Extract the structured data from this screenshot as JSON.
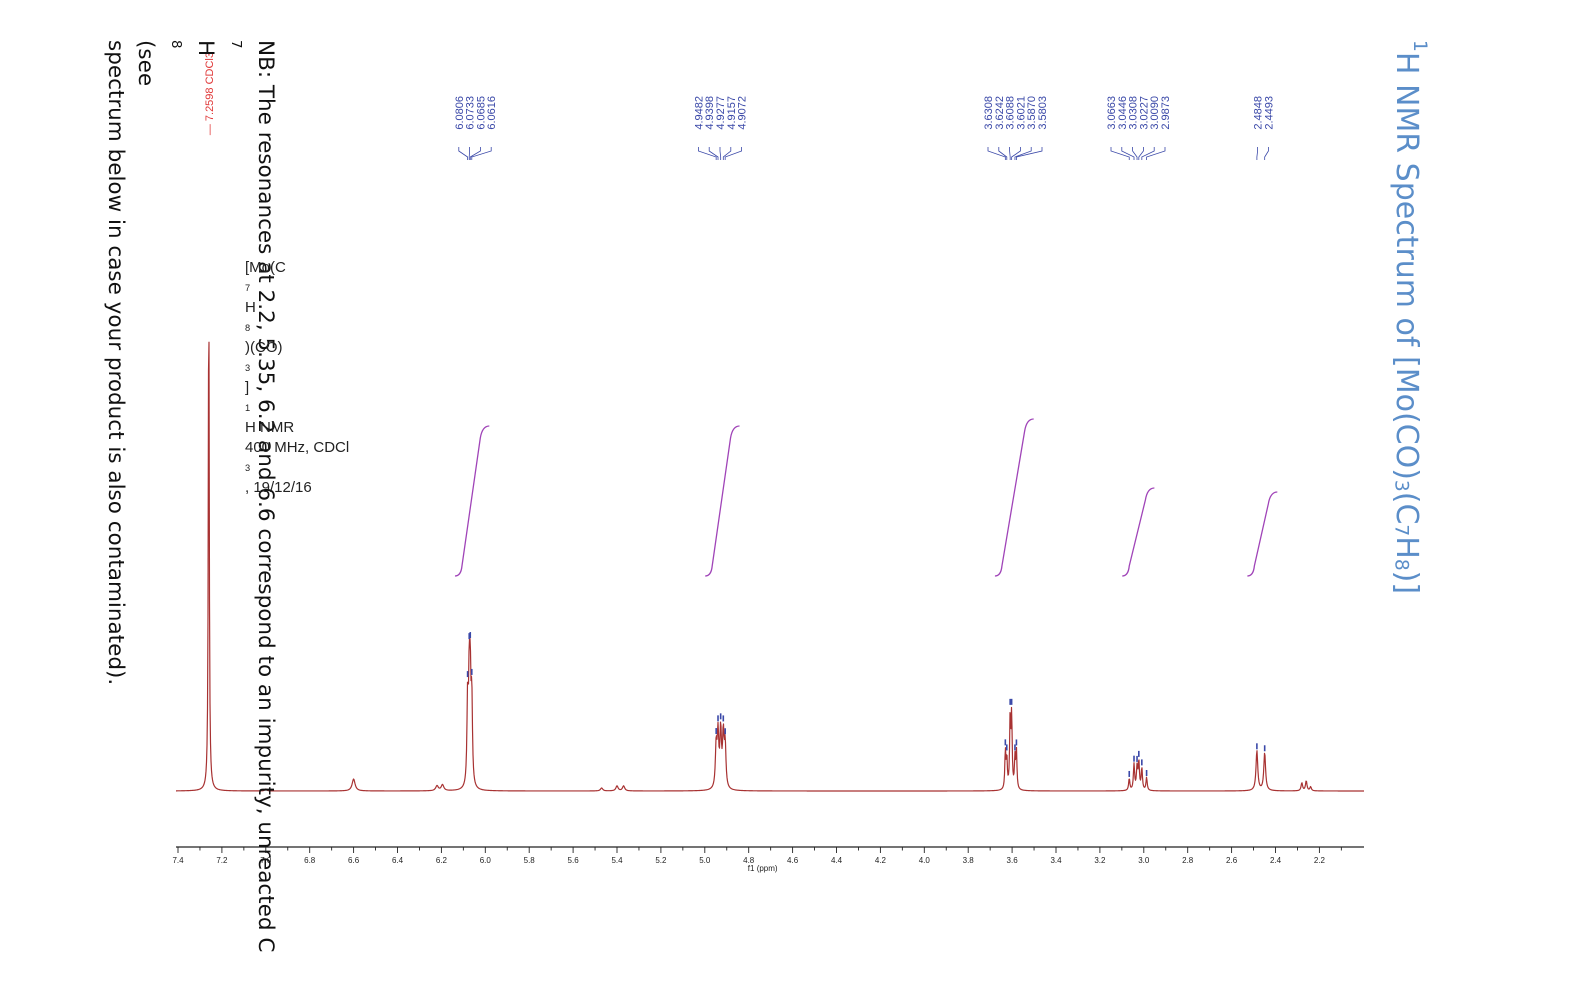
{
  "title": {
    "pre": "1",
    "main": "H NMR Spectrum of [Mo(CO)",
    "s1": "3",
    "mid": "(C",
    "s2": "7",
    "mid2": "H",
    "s3": "8",
    "end": ")]"
  },
  "note": {
    "line1": "NB: The resonances at 2.2, 5.35, 6.2 and 6.6 correspond to an impurity, unreacted C",
    "s1": "7",
    "mid": "H",
    "s2": "8",
    "line1_end": " (see",
    "line2": "spectrum below in case your product is also contaminated)."
  },
  "sample": {
    "l1a": "[Mo(C",
    "l1s1": "7",
    "l1b": "H",
    "l1s2": "8",
    "l1c": ")(CO)",
    "l1s3": "3",
    "l1d": "]",
    "l1sup": "1",
    "l1e": "H NMR",
    "line2": "400 MHz, CDCl",
    "l2s": "3",
    "l2end": ", 19/12/16"
  },
  "colors": {
    "spectrum": "#a83232",
    "peak_marker": "#3a48a8",
    "integral": "#a044b8",
    "solvent_label": "#e03a3a",
    "title": "#5b8ec9",
    "axis": "#222222"
  },
  "chart_data": {
    "type": "line",
    "title": "",
    "xlabel": "f1 (ppm)",
    "ylabel": "",
    "xlim": [
      7.4,
      2.05
    ],
    "x_reversed": true,
    "xticks": [
      "7.4",
      "7.2",
      "7.0",
      "6.8",
      "6.6",
      "6.4",
      "6.2",
      "6.0",
      "5.8",
      "5.6",
      "5.4",
      "5.2",
      "5.0",
      "4.8",
      "4.6",
      "4.4",
      "4.2",
      "4.0",
      "3.8",
      "3.6",
      "3.4",
      "3.2",
      "3.0",
      "2.8",
      "2.6",
      "2.4",
      "2.2"
    ],
    "solvent_peak": {
      "label": "7.2598 CDCl3",
      "ppm": 7.2598
    },
    "peak_groups": [
      {
        "labels": [
          "6.0806",
          "6.0733",
          "6.0685",
          "6.0616"
        ]
      },
      {
        "labels": [
          "4.9482",
          "4.9398",
          "4.9277",
          "4.9157",
          "4.9072"
        ]
      },
      {
        "labels": [
          "3.6308",
          "3.6242",
          "3.6088",
          "3.6021",
          "3.5870",
          "3.5803"
        ]
      },
      {
        "labels": [
          "3.0663",
          "3.0446",
          "3.0308",
          "3.0227",
          "3.0090",
          "2.9873"
        ]
      },
      {
        "labels": [
          "2.4848",
          "2.4493"
        ]
      }
    ],
    "integrals": [
      {
        "from": 6.12,
        "to": 6.0
      },
      {
        "from": 4.98,
        "to": 4.86
      },
      {
        "from": 3.66,
        "to": 3.52
      },
      {
        "from": 3.08,
        "to": 2.97
      },
      {
        "from": 2.51,
        "to": 2.41
      }
    ],
    "grid": false,
    "legend": "none"
  }
}
